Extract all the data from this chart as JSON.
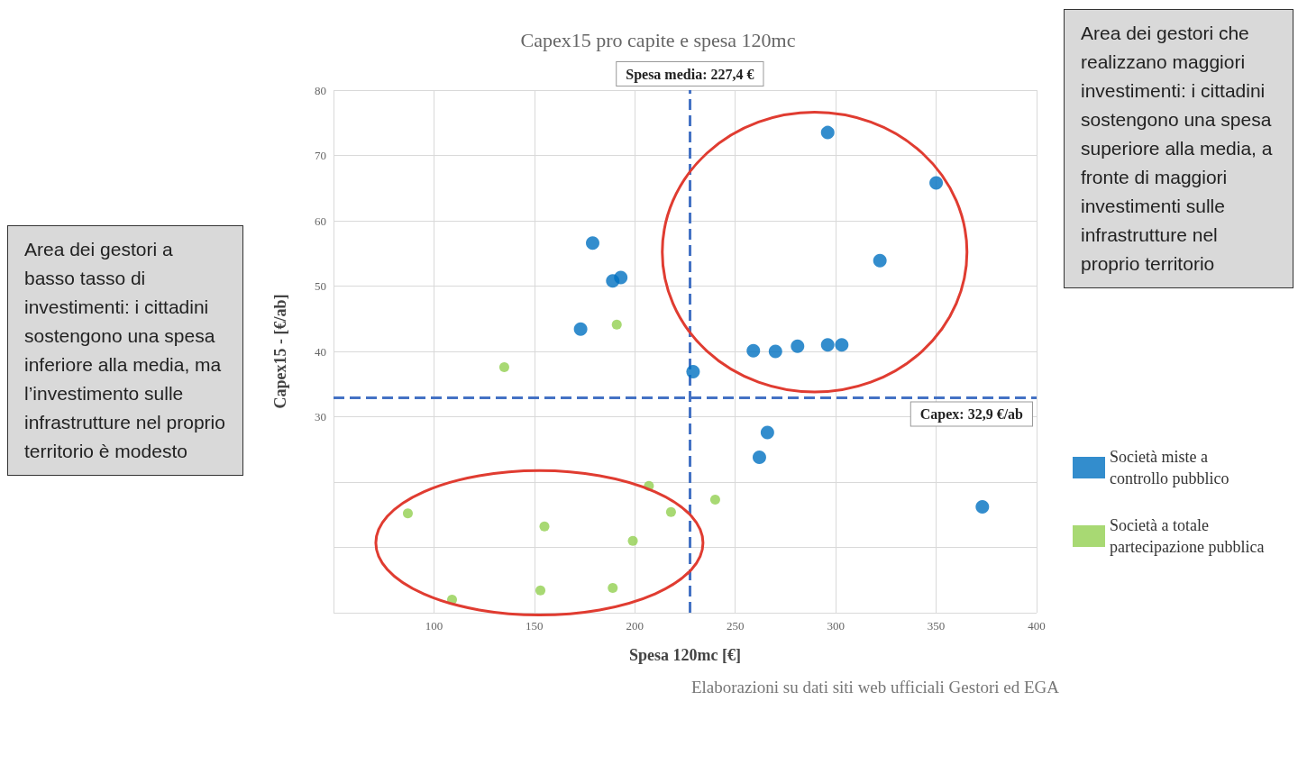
{
  "chart_data": {
    "type": "scatter",
    "title": "Capex15 pro capite e spesa 120mc",
    "xlabel": "Spesa 120mc [€]",
    "ylabel": "Capex15 - [€/ab]",
    "annotations": [
      "Area dei gestori che realizzano maggiori investimenti: i cittadini sostengono una spesa superiore alla media, a fronte di maggiori investimenti sulle infrastrutture nel proprio territorio",
      "Area dei gestori a basso tasso di investimenti: i cittadini sostengono una spesa inferiore alla media, ma l’investimento sulle infrastrutture nel proprio territorio è modesto",
      "Elaborazioni su dati siti web ufficiali Gestori ed EGA"
    ],
    "series": [
      {
        "name": "Società miste a controllo pubblico",
        "color": "#0070c0",
        "x": [
          179,
          173,
          189,
          193,
          229,
          259,
          270,
          281,
          296,
          303,
          296,
          350,
          322,
          266,
          262,
          373
        ],
        "values": [
          56.6,
          43.4,
          50.8,
          51.3,
          36.9,
          40.1,
          40,
          40.8,
          41,
          41,
          73.5,
          65.8,
          53.9,
          27.6,
          23.8,
          16.2
        ]
      },
      {
        "name": "Società a totale partecipazione pubblica",
        "color": "#92d050",
        "x": [
          135,
          191,
          87,
          109,
          155,
          153,
          189,
          199,
          207,
          218,
          240
        ],
        "values": [
          37.6,
          44.1,
          15.2,
          2,
          13.2,
          3.4,
          3.8,
          11,
          19.4,
          15.4,
          17.3
        ]
      }
    ],
    "xlim": [
      50,
      400
    ],
    "xticks": [
      {
        "value": 50,
        "label": null
      },
      100,
      150,
      200,
      250,
      300,
      350,
      400
    ],
    "ylim": [
      0,
      80
    ],
    "yticks": [
      {
        "value": 0,
        "label": null
      },
      {
        "value": 10,
        "label": null
      },
      {
        "value": 20,
        "label": null
      },
      30,
      40,
      50,
      60,
      70,
      80
    ],
    "ref_lines": [
      {
        "axis": "x",
        "value": 227.4,
        "label": "Spesa media: 227,4 €",
        "color": "#4472c4",
        "line_style": "dashed"
      },
      {
        "axis": "y",
        "value": 32.9,
        "label": "Capex: 32,9 €/ab",
        "color": "#4472c4",
        "line_style": "dashed"
      }
    ],
    "grid": true,
    "legend": "right",
    "marker": "circle"
  }
}
